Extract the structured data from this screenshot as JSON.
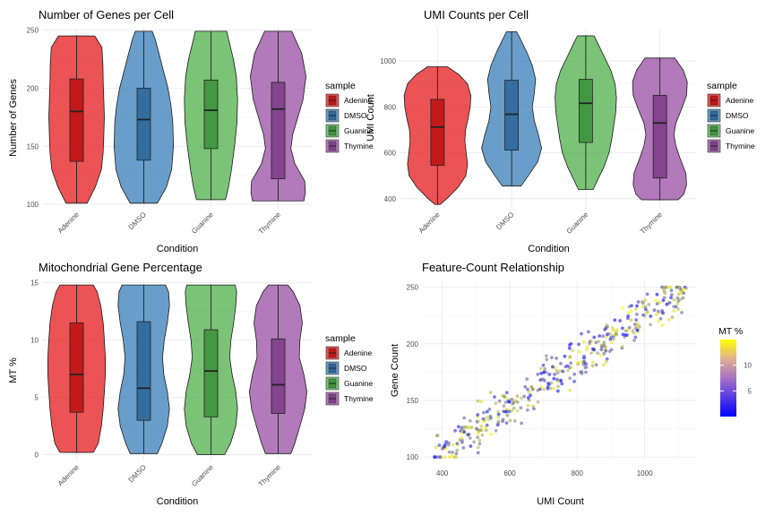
{
  "chart_data": [
    {
      "type": "violin",
      "title": "Number of Genes per Cell",
      "xlabel": "Condition",
      "ylabel": "Number of Genes",
      "ylim": [
        97,
        252
      ],
      "yticks": [
        100,
        150,
        200,
        250
      ],
      "categories": [
        "Adenine",
        "DMSO",
        "Guanine",
        "Thymine"
      ],
      "legend": {
        "title": "sample",
        "position": "right"
      },
      "series": [
        {
          "name": "Adenine",
          "min": 101,
          "max": 245,
          "q1": 137,
          "median": 180,
          "q3": 208,
          "density": [
            [
              101,
              0.35
            ],
            [
              115,
              0.62
            ],
            [
              130,
              0.82
            ],
            [
              145,
              0.88
            ],
            [
              160,
              0.9
            ],
            [
              175,
              0.92
            ],
            [
              190,
              0.9
            ],
            [
              205,
              0.88
            ],
            [
              220,
              0.87
            ],
            [
              235,
              0.84
            ],
            [
              245,
              0.6
            ]
          ]
        },
        {
          "name": "DMSO",
          "min": 101,
          "max": 249,
          "q1": 138,
          "median": 173,
          "q3": 200,
          "density": [
            [
              101,
              0.45
            ],
            [
              115,
              0.75
            ],
            [
              130,
              0.92
            ],
            [
              150,
              0.98
            ],
            [
              170,
              0.96
            ],
            [
              185,
              0.9
            ],
            [
              200,
              0.8
            ],
            [
              215,
              0.65
            ],
            [
              230,
              0.5
            ],
            [
              242,
              0.38
            ],
            [
              249,
              0.28
            ]
          ]
        },
        {
          "name": "Guanine",
          "min": 104,
          "max": 249,
          "q1": 148,
          "median": 181,
          "q3": 207,
          "density": [
            [
              104,
              0.48
            ],
            [
              115,
              0.58
            ],
            [
              130,
              0.68
            ],
            [
              150,
              0.78
            ],
            [
              170,
              0.86
            ],
            [
              190,
              0.88
            ],
            [
              210,
              0.84
            ],
            [
              225,
              0.74
            ],
            [
              240,
              0.6
            ],
            [
              249,
              0.52
            ]
          ]
        },
        {
          "name": "Thymine",
          "min": 103,
          "max": 249,
          "q1": 122,
          "median": 182,
          "q3": 205,
          "density": [
            [
              103,
              0.85
            ],
            [
              110,
              0.9
            ],
            [
              120,
              0.88
            ],
            [
              135,
              0.55
            ],
            [
              148,
              0.42
            ],
            [
              160,
              0.48
            ],
            [
              172,
              0.62
            ],
            [
              190,
              0.82
            ],
            [
              210,
              0.92
            ],
            [
              230,
              0.78
            ],
            [
              243,
              0.55
            ],
            [
              249,
              0.45
            ]
          ]
        }
      ]
    },
    {
      "type": "violin",
      "title": "UMI Counts per Cell",
      "xlabel": "Condition",
      "ylabel": "UMI Count",
      "ylim": [
        360,
        1145
      ],
      "yticks": [
        400,
        600,
        800,
        1000
      ],
      "categories": [
        "Adenine",
        "DMSO",
        "Guanine",
        "Thymine"
      ],
      "legend": {
        "title": "sample",
        "position": "right"
      },
      "series": [
        {
          "name": "Adenine",
          "min": 375,
          "max": 975,
          "q1": 545,
          "median": 712,
          "q3": 833,
          "density": [
            [
              375,
              0.08
            ],
            [
              400,
              0.28
            ],
            [
              450,
              0.62
            ],
            [
              500,
              0.85
            ],
            [
              550,
              0.9
            ],
            [
              600,
              0.86
            ],
            [
              650,
              0.82
            ],
            [
              700,
              0.84
            ],
            [
              750,
              0.92
            ],
            [
              800,
              0.98
            ],
            [
              850,
              1.0
            ],
            [
              900,
              0.9
            ],
            [
              940,
              0.65
            ],
            [
              975,
              0.3
            ]
          ]
        },
        {
          "name": "DMSO",
          "min": 455,
          "max": 1128,
          "q1": 612,
          "median": 768,
          "q3": 916,
          "density": [
            [
              455,
              0.28
            ],
            [
              500,
              0.5
            ],
            [
              560,
              0.78
            ],
            [
              620,
              0.9
            ],
            [
              680,
              0.8
            ],
            [
              740,
              0.68
            ],
            [
              800,
              0.62
            ],
            [
              860,
              0.68
            ],
            [
              920,
              0.72
            ],
            [
              980,
              0.62
            ],
            [
              1040,
              0.45
            ],
            [
              1100,
              0.25
            ],
            [
              1128,
              0.15
            ]
          ]
        },
        {
          "name": "Guanine",
          "min": 440,
          "max": 1110,
          "q1": 645,
          "median": 816,
          "q3": 920,
          "density": [
            [
              440,
              0.22
            ],
            [
              480,
              0.35
            ],
            [
              540,
              0.55
            ],
            [
              600,
              0.7
            ],
            [
              660,
              0.78
            ],
            [
              720,
              0.84
            ],
            [
              780,
              0.9
            ],
            [
              840,
              0.92
            ],
            [
              900,
              0.88
            ],
            [
              960,
              0.75
            ],
            [
              1020,
              0.55
            ],
            [
              1080,
              0.35
            ],
            [
              1110,
              0.25
            ]
          ]
        },
        {
          "name": "Thymine",
          "min": 395,
          "max": 1013,
          "q1": 490,
          "median": 730,
          "q3": 850,
          "density": [
            [
              395,
              0.55
            ],
            [
              420,
              0.72
            ],
            [
              460,
              0.8
            ],
            [
              510,
              0.78
            ],
            [
              570,
              0.62
            ],
            [
              630,
              0.48
            ],
            [
              680,
              0.42
            ],
            [
              730,
              0.48
            ],
            [
              790,
              0.65
            ],
            [
              850,
              0.8
            ],
            [
              910,
              0.82
            ],
            [
              960,
              0.7
            ],
            [
              1013,
              0.45
            ]
          ]
        }
      ]
    },
    {
      "type": "violin",
      "title": "Mitochondrial Gene Percentage",
      "xlabel": "Condition",
      "ylabel": "MT %",
      "ylim": [
        -0.5,
        15.2
      ],
      "yticks": [
        0,
        5,
        10,
        15
      ],
      "categories": [
        "Adenine",
        "DMSO",
        "Guanine",
        "Thymine"
      ],
      "legend": {
        "title": "sample",
        "position": "right"
      },
      "series": [
        {
          "name": "Adenine",
          "min": 0.2,
          "max": 14.8,
          "q1": 3.7,
          "median": 7.0,
          "q3": 11.5,
          "density": [
            [
              0.2,
              0.55
            ],
            [
              1,
              0.72
            ],
            [
              2.5,
              0.82
            ],
            [
              4,
              0.88
            ],
            [
              5.5,
              0.92
            ],
            [
              7,
              0.95
            ],
            [
              8.5,
              0.95
            ],
            [
              10,
              0.92
            ],
            [
              11.5,
              0.88
            ],
            [
              13,
              0.8
            ],
            [
              14.2,
              0.68
            ],
            [
              14.8,
              0.55
            ]
          ]
        },
        {
          "name": "DMSO",
          "min": 0.1,
          "max": 14.8,
          "q1": 3.0,
          "median": 5.8,
          "q3": 11.6,
          "density": [
            [
              0.1,
              0.45
            ],
            [
              1,
              0.6
            ],
            [
              2.5,
              0.78
            ],
            [
              4,
              0.85
            ],
            [
              5.5,
              0.78
            ],
            [
              7,
              0.66
            ],
            [
              8.5,
              0.62
            ],
            [
              10,
              0.68
            ],
            [
              11.5,
              0.78
            ],
            [
              13,
              0.85
            ],
            [
              14.2,
              0.82
            ],
            [
              14.8,
              0.72
            ]
          ]
        },
        {
          "name": "Guanine",
          "min": 0.0,
          "max": 14.8,
          "q1": 3.3,
          "median": 7.3,
          "q3": 10.9,
          "density": [
            [
              0.0,
              0.45
            ],
            [
              1,
              0.65
            ],
            [
              2.5,
              0.82
            ],
            [
              4,
              0.88
            ],
            [
              5.5,
              0.82
            ],
            [
              7,
              0.7
            ],
            [
              8.5,
              0.62
            ],
            [
              10,
              0.66
            ],
            [
              11.5,
              0.75
            ],
            [
              13,
              0.82
            ],
            [
              14.2,
              0.85
            ],
            [
              14.8,
              0.8
            ]
          ]
        },
        {
          "name": "Thymine",
          "min": 0.1,
          "max": 14.8,
          "q1": 3.6,
          "median": 6.1,
          "q3": 10.1,
          "density": [
            [
              0.1,
              0.42
            ],
            [
              1,
              0.55
            ],
            [
              2.5,
              0.72
            ],
            [
              4,
              0.88
            ],
            [
              5.5,
              0.95
            ],
            [
              7,
              0.85
            ],
            [
              8.5,
              0.7
            ],
            [
              10,
              0.72
            ],
            [
              11.5,
              0.8
            ],
            [
              13,
              0.72
            ],
            [
              14.2,
              0.5
            ],
            [
              14.8,
              0.32
            ]
          ]
        }
      ]
    },
    {
      "type": "scatter",
      "title": "Feature-Count Relationship",
      "xlabel": "UMI Count",
      "ylabel": "Gene Count",
      "xlim": [
        345,
        1155
      ],
      "ylim": [
        97,
        256
      ],
      "xticks": [
        400,
        600,
        800,
        1000
      ],
      "yticks": [
        100,
        150,
        200,
        250
      ],
      "legend": {
        "title": "MT %",
        "position": "right",
        "ticks": [
          5,
          10
        ],
        "range": [
          0,
          15
        ]
      },
      "colorscale": [
        "#0000ff",
        "#ffff00"
      ],
      "n_points": 400,
      "trend": {
        "gene_at_umi_400": 104,
        "gene_at_umi_1120": 250
      },
      "x_range": [
        375,
        1128
      ],
      "mt_range": [
        0,
        15
      ]
    }
  ],
  "colors": {
    "Adenine": "#e41a1c",
    "DMSO": "#377eb8",
    "Guanine": "#4daf4a",
    "Thymine": "#984ea3"
  }
}
